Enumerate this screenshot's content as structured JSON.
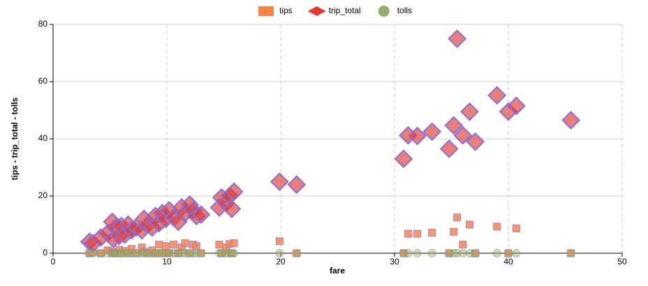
{
  "chart_data": {
    "type": "scatter",
    "x_label": "fare",
    "y_label": "tips - trip_total - tolls",
    "x": [
      3.2,
      3.5,
      4.2,
      4.8,
      5.2,
      5.3,
      5.5,
      5.8,
      6.0,
      6.3,
      6.6,
      6.9,
      7.3,
      7.8,
      8.0,
      8.3,
      8.7,
      9.0,
      9.3,
      9.6,
      9.9,
      10.2,
      10.6,
      11.0,
      11.3,
      11.6,
      12.0,
      12.3,
      12.6,
      13.0,
      14.6,
      14.8,
      15.2,
      15.5,
      15.7,
      15.9,
      19.9,
      21.4,
      30.8,
      31.2,
      32.0,
      33.3,
      34.8,
      35.2,
      35.5,
      36.0,
      36.6,
      37.1,
      39.0,
      40.0,
      40.7,
      45.5
    ],
    "series": [
      {
        "name": "tips",
        "color": "#ff8547",
        "marker": "square",
        "values": [
          0,
          0.3,
          0,
          1,
          0,
          0.5,
          0,
          1.2,
          0,
          0.8,
          0,
          1.5,
          0,
          2,
          0.5,
          0,
          1,
          0,
          3,
          0,
          2.5,
          0,
          3,
          0,
          2,
          3.5,
          0,
          3,
          2.5,
          0,
          3,
          0,
          2,
          3.2,
          0,
          3.5,
          4.2,
          0,
          0,
          6.8,
          6.8,
          7.2,
          0,
          7.5,
          12.5,
          3,
          10,
          0,
          9.3,
          0,
          8.7,
          0
        ]
      },
      {
        "name": "trip_total",
        "color": "#dd3b35",
        "marker": "diamond",
        "values": [
          4,
          3.5,
          5.5,
          7,
          11,
          5,
          9,
          6,
          9.5,
          6.5,
          10,
          8,
          9,
          8,
          12,
          10,
          9,
          13,
          10.5,
          14,
          12,
          15,
          12.5,
          11,
          16,
          14,
          17,
          15,
          13,
          13.5,
          16,
          19.5,
          17.5,
          20,
          15.5,
          21.5,
          25,
          24,
          33,
          41.2,
          41,
          42.5,
          36.5,
          44.7,
          75,
          41.2,
          49.5,
          39,
          55.2,
          49.5,
          51.5,
          46.5
        ]
      },
      {
        "name": "tolls",
        "color": "#95ab6b",
        "marker": "circle",
        "values": [
          0,
          0,
          0,
          0,
          0,
          0,
          0,
          0,
          0,
          0,
          0,
          0,
          0,
          0,
          0,
          0,
          0,
          0,
          0,
          0,
          0,
          0,
          0,
          0,
          0,
          0,
          0,
          0,
          0,
          0,
          0,
          0,
          0,
          0,
          0,
          0,
          0,
          0,
          0,
          0,
          0,
          0,
          0,
          0,
          0,
          0,
          0,
          0,
          0,
          0,
          0,
          0
        ]
      }
    ],
    "xlim": [
      0,
      50
    ],
    "xticks": [
      0,
      10,
      20,
      30,
      40,
      50
    ],
    "ylim": [
      0,
      80
    ],
    "yticks": [
      0,
      20,
      40,
      60,
      80
    ],
    "grid": true,
    "legend": "top"
  }
}
